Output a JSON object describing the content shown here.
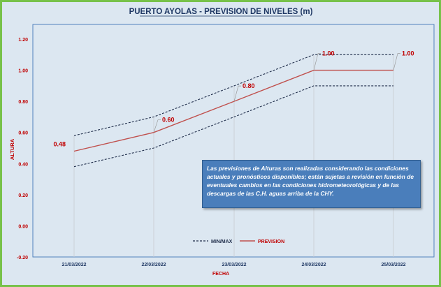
{
  "chart_data": {
    "type": "line",
    "title": "PUERTO AYOLAS - PREVISION DE NIVELES (m)",
    "xlabel": "FECHA",
    "ylabel": "ALTURA",
    "categories": [
      "21/03/2022",
      "22/03/2022",
      "23/03/2022",
      "24/03/2022",
      "25/03/2022"
    ],
    "ylim": [
      -0.2,
      1.2
    ],
    "yticks": [
      -0.2,
      0.0,
      0.2,
      0.4,
      0.6,
      0.8,
      1.0,
      1.2
    ],
    "ytick_labels": [
      "-0.20",
      "0.00",
      "0.20",
      "0.40",
      "0.60",
      "0.80",
      "1.00",
      "1.20"
    ],
    "grid": false,
    "legend_placement": "bottom-center",
    "series": [
      {
        "name": "MIN/MAX",
        "values": [
          0.38,
          0.5,
          0.7,
          0.9,
          0.9
        ],
        "color": "#1f2d4a",
        "style": "dashed"
      },
      {
        "name": "MIN/MAX",
        "values": [
          0.58,
          0.7,
          0.9,
          1.1,
          1.1
        ],
        "color": "#1f2d4a",
        "style": "dashed",
        "legend": false
      },
      {
        "name": "PREVISION",
        "values": [
          0.48,
          0.6,
          0.8,
          1.0,
          1.0
        ],
        "color": "#c0504d",
        "style": "solid",
        "labels": [
          "0.48",
          "0.60",
          "0.80",
          "1.00",
          "1.00"
        ]
      }
    ]
  },
  "note": {
    "text": "Las previsiones de Alturas son realizadas considerando las condiciones actuales y pronósticos disponibles; están sujetas a revisión en función de eventuales cambios en las condiciones hidrometeorológicas y de las descargas de las C.H. aguas arriba de la CHY."
  },
  "colors": {
    "frame_border": "#77c24a",
    "background": "#dce7f1",
    "plot_border": "#4f81bd",
    "title_color": "#1f3864",
    "accent_red": "#c00000",
    "note_fill": "#4a7ebb"
  }
}
